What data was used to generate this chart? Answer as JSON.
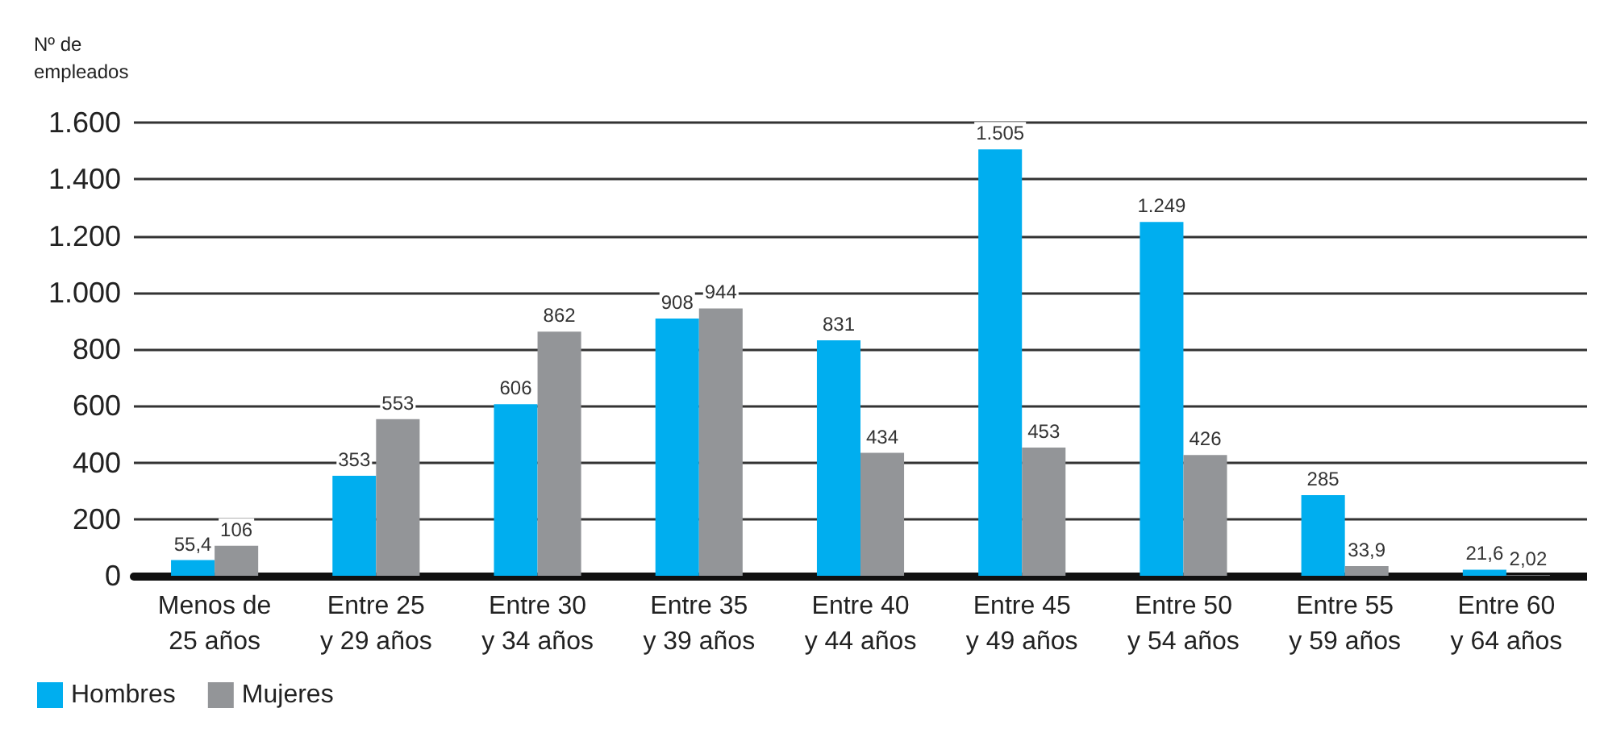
{
  "chart_data": {
    "type": "bar",
    "ylabel": "Nº de\nempleados",
    "categories": [
      "Menos de\n25 años",
      "Entre 25\ny 29 años",
      "Entre 30\ny 34 años",
      "Entre 35\ny 39 años",
      "Entre 40\ny 44 años",
      "Entre 45\ny 49 años",
      "Entre 50\ny 54 años",
      "Entre 55\ny 59 años",
      "Entre 60\ny 64 años"
    ],
    "series": [
      {
        "name": "Hombres",
        "color": "#00aeef",
        "values": [
          55.4,
          353,
          606,
          908,
          831,
          1505,
          1249,
          285,
          21.6
        ],
        "value_labels": [
          "55,4",
          "353",
          "606",
          "908",
          "831",
          "1.505",
          "1.249",
          "285",
          "21,6"
        ]
      },
      {
        "name": "Mujeres",
        "color": "#939598",
        "values": [
          106,
          553,
          862,
          944,
          434,
          453,
          426,
          33.9,
          2.02
        ],
        "value_labels": [
          "106",
          "553",
          "862",
          "944",
          "434",
          "453",
          "426",
          "33,9",
          "2,02"
        ]
      }
    ],
    "ylim": [
      0,
      1600
    ],
    "yticks": [
      {
        "value": 0,
        "label": "0"
      },
      {
        "value": 200,
        "label": "200"
      },
      {
        "value": 400,
        "label": "400"
      },
      {
        "value": 600,
        "label": "600"
      },
      {
        "value": 800,
        "label": "800"
      },
      {
        "value": 1000,
        "label": "1.000"
      },
      {
        "value": 1200,
        "label": "1.200"
      },
      {
        "value": 1400,
        "label": "1.400"
      },
      {
        "value": 1600,
        "label": "1.600"
      }
    ],
    "grid": "y",
    "legend": "bottom left"
  }
}
